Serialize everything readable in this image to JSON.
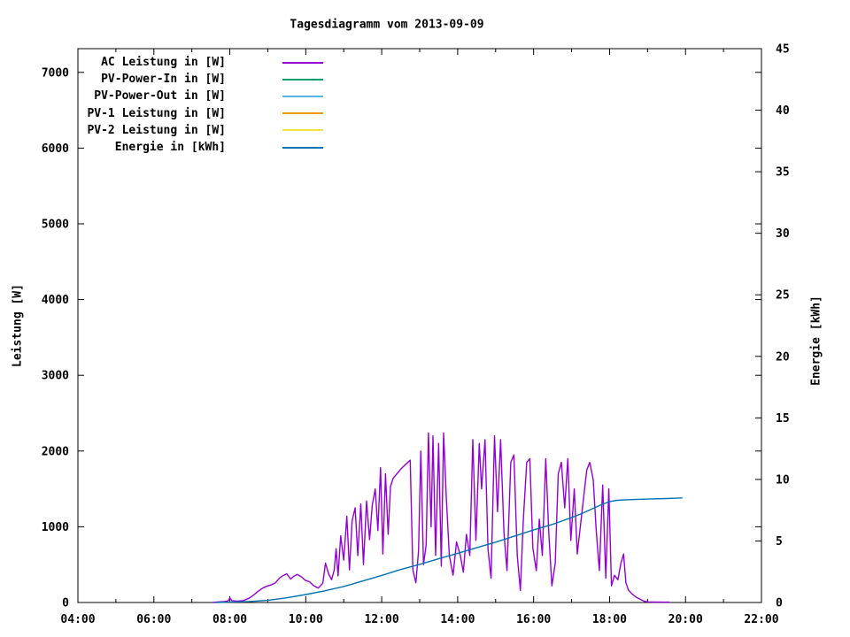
{
  "chart_data": {
    "type": "line",
    "title": "Tagesdiagramm vom 2013-09-09",
    "ylabel": "Leistung [W]",
    "y2label": "Energie [kWh]",
    "grid": false,
    "legend_position": "top-left-inside",
    "background": "#ffffff",
    "border_color": "#000000",
    "x_axis": {
      "min": 4,
      "max": 22,
      "major_ticks": [
        {
          "t": 4,
          "label": "04:00"
        },
        {
          "t": 6,
          "label": "06:00"
        },
        {
          "t": 8,
          "label": "08:00"
        },
        {
          "t": 10,
          "label": "10:00"
        },
        {
          "t": 12,
          "label": "12:00"
        },
        {
          "t": 14,
          "label": "14:00"
        },
        {
          "t": 16,
          "label": "16:00"
        },
        {
          "t": 18,
          "label": "18:00"
        },
        {
          "t": 20,
          "label": "20:00"
        },
        {
          "t": 22,
          "label": "22:00"
        }
      ],
      "minor_ticks": [
        5,
        7,
        9,
        11,
        13,
        15,
        17,
        19,
        21
      ]
    },
    "y_axis": {
      "min": 0,
      "max": 7313,
      "ticks": [
        {
          "v": 0,
          "label": "0"
        },
        {
          "v": 1000,
          "label": "1000"
        },
        {
          "v": 2000,
          "label": "2000"
        },
        {
          "v": 3000,
          "label": "3000"
        },
        {
          "v": 4000,
          "label": "4000"
        },
        {
          "v": 5000,
          "label": "5000"
        },
        {
          "v": 6000,
          "label": "6000"
        },
        {
          "v": 7000,
          "label": "7000"
        }
      ]
    },
    "y2_axis": {
      "min": 0,
      "max": 45,
      "ticks": [
        {
          "v": 0,
          "label": "0"
        },
        {
          "v": 5,
          "label": "5"
        },
        {
          "v": 10,
          "label": "10"
        },
        {
          "v": 15,
          "label": "15"
        },
        {
          "v": 20,
          "label": "20"
        },
        {
          "v": 25,
          "label": "25"
        },
        {
          "v": 30,
          "label": "30"
        },
        {
          "v": 35,
          "label": "35"
        },
        {
          "v": 40,
          "label": "40"
        },
        {
          "v": 45,
          "label": "45"
        }
      ]
    },
    "series": [
      {
        "name": "AC Leistung in [W]",
        "color": "#9400d3",
        "axis": "y1",
        "points": [
          [
            7.55,
            0
          ],
          [
            7.7,
            8
          ],
          [
            7.85,
            12
          ],
          [
            7.95,
            20
          ],
          [
            8.0,
            60
          ],
          [
            8.05,
            25
          ],
          [
            8.2,
            18
          ],
          [
            8.35,
            25
          ],
          [
            8.5,
            55
          ],
          [
            8.62,
            95
          ],
          [
            8.75,
            150
          ],
          [
            8.88,
            195
          ],
          [
            9.0,
            220
          ],
          [
            9.1,
            235
          ],
          [
            9.2,
            260
          ],
          [
            9.32,
            330
          ],
          [
            9.42,
            360
          ],
          [
            9.5,
            380
          ],
          [
            9.6,
            310
          ],
          [
            9.68,
            345
          ],
          [
            9.78,
            370
          ],
          [
            9.88,
            340
          ],
          [
            10.0,
            290
          ],
          [
            10.1,
            275
          ],
          [
            10.2,
            225
          ],
          [
            10.33,
            190
          ],
          [
            10.45,
            255
          ],
          [
            10.52,
            520
          ],
          [
            10.6,
            380
          ],
          [
            10.68,
            300
          ],
          [
            10.75,
            430
          ],
          [
            10.8,
            710
          ],
          [
            10.85,
            350
          ],
          [
            10.92,
            880
          ],
          [
            11.0,
            560
          ],
          [
            11.08,
            1140
          ],
          [
            11.15,
            430
          ],
          [
            11.22,
            1080
          ],
          [
            11.3,
            1250
          ],
          [
            11.37,
            620
          ],
          [
            11.45,
            1300
          ],
          [
            11.52,
            500
          ],
          [
            11.6,
            1340
          ],
          [
            11.68,
            830
          ],
          [
            11.75,
            1280
          ],
          [
            11.83,
            1500
          ],
          [
            11.9,
            950
          ],
          [
            11.97,
            1780
          ],
          [
            12.03,
            640
          ],
          [
            12.1,
            1700
          ],
          [
            12.17,
            900
          ],
          [
            12.23,
            1530
          ],
          [
            12.3,
            1640
          ],
          [
            12.4,
            1700
          ],
          [
            12.5,
            1760
          ],
          [
            12.62,
            1820
          ],
          [
            12.75,
            1880
          ],
          [
            12.82,
            430
          ],
          [
            12.9,
            260
          ],
          [
            12.97,
            680
          ],
          [
            13.03,
            2000
          ],
          [
            13.1,
            500
          ],
          [
            13.17,
            760
          ],
          [
            13.23,
            2240
          ],
          [
            13.3,
            1000
          ],
          [
            13.35,
            2200
          ],
          [
            13.42,
            620
          ],
          [
            13.5,
            2100
          ],
          [
            13.57,
            480
          ],
          [
            13.63,
            2240
          ],
          [
            13.7,
            1400
          ],
          [
            13.78,
            620
          ],
          [
            13.88,
            360
          ],
          [
            13.97,
            800
          ],
          [
            14.07,
            620
          ],
          [
            14.15,
            400
          ],
          [
            14.23,
            900
          ],
          [
            14.32,
            620
          ],
          [
            14.4,
            2150
          ],
          [
            14.48,
            820
          ],
          [
            14.57,
            2100
          ],
          [
            14.63,
            1500
          ],
          [
            14.72,
            2150
          ],
          [
            14.8,
            700
          ],
          [
            14.88,
            320
          ],
          [
            14.97,
            2200
          ],
          [
            15.05,
            1200
          ],
          [
            15.13,
            2150
          ],
          [
            15.22,
            920
          ],
          [
            15.3,
            420
          ],
          [
            15.4,
            1850
          ],
          [
            15.48,
            1950
          ],
          [
            15.57,
            620
          ],
          [
            15.65,
            160
          ],
          [
            15.73,
            1100
          ],
          [
            15.82,
            1850
          ],
          [
            15.9,
            1900
          ],
          [
            15.98,
            720
          ],
          [
            16.07,
            420
          ],
          [
            16.15,
            1100
          ],
          [
            16.23,
            620
          ],
          [
            16.32,
            1900
          ],
          [
            16.4,
            920
          ],
          [
            16.48,
            220
          ],
          [
            16.57,
            520
          ],
          [
            16.65,
            1700
          ],
          [
            16.73,
            1850
          ],
          [
            16.82,
            1250
          ],
          [
            16.9,
            1900
          ],
          [
            16.98,
            820
          ],
          [
            17.07,
            1500
          ],
          [
            17.15,
            640
          ],
          [
            17.23,
            1000
          ],
          [
            17.32,
            1400
          ],
          [
            17.4,
            1750
          ],
          [
            17.48,
            1850
          ],
          [
            17.57,
            1620
          ],
          [
            17.65,
            950
          ],
          [
            17.73,
            420
          ],
          [
            17.82,
            1550
          ],
          [
            17.9,
            320
          ],
          [
            17.98,
            1500
          ],
          [
            18.05,
            220
          ],
          [
            18.13,
            360
          ],
          [
            18.22,
            300
          ],
          [
            18.3,
            520
          ],
          [
            18.37,
            640
          ],
          [
            18.43,
            260
          ],
          [
            18.5,
            160
          ],
          [
            18.6,
            110
          ],
          [
            18.7,
            70
          ],
          [
            18.82,
            40
          ],
          [
            18.92,
            15
          ],
          [
            19.0,
            8
          ],
          [
            19.2,
            6
          ],
          [
            19.4,
            5
          ],
          [
            19.58,
            5
          ]
        ]
      },
      {
        "name": "PV-Power-In in [W]",
        "color": "#009e73",
        "axis": "y1",
        "points": []
      },
      {
        "name": "PV-Power-Out in [W]",
        "color": "#56b4e9",
        "axis": "y1",
        "points": []
      },
      {
        "name": "PV-1 Leistung in [W]",
        "color": "#e69f00",
        "axis": "y1",
        "points": []
      },
      {
        "name": "PV-2 Leistung in [W]",
        "color": "#f0e442",
        "axis": "y1",
        "points": []
      },
      {
        "name": "Energie in [kWh]",
        "color": "#0072b2",
        "axis": "y2",
        "points": [
          [
            7.6,
            0
          ],
          [
            8.0,
            0.03
          ],
          [
            8.5,
            0.08
          ],
          [
            9.0,
            0.17
          ],
          [
            9.5,
            0.38
          ],
          [
            10.0,
            0.65
          ],
          [
            10.5,
            0.95
          ],
          [
            11.0,
            1.3
          ],
          [
            11.5,
            1.75
          ],
          [
            12.0,
            2.2
          ],
          [
            12.5,
            2.68
          ],
          [
            13.0,
            3.1
          ],
          [
            13.5,
            3.55
          ],
          [
            14.0,
            4.0
          ],
          [
            14.5,
            4.45
          ],
          [
            15.0,
            4.9
          ],
          [
            15.5,
            5.4
          ],
          [
            16.0,
            5.9
          ],
          [
            16.5,
            6.35
          ],
          [
            17.0,
            6.9
          ],
          [
            17.25,
            7.2
          ],
          [
            17.5,
            7.55
          ],
          [
            17.75,
            7.9
          ],
          [
            18.0,
            8.2
          ],
          [
            18.2,
            8.3
          ],
          [
            18.5,
            8.35
          ],
          [
            19.0,
            8.4
          ],
          [
            19.5,
            8.45
          ],
          [
            19.92,
            8.5
          ]
        ]
      }
    ]
  }
}
